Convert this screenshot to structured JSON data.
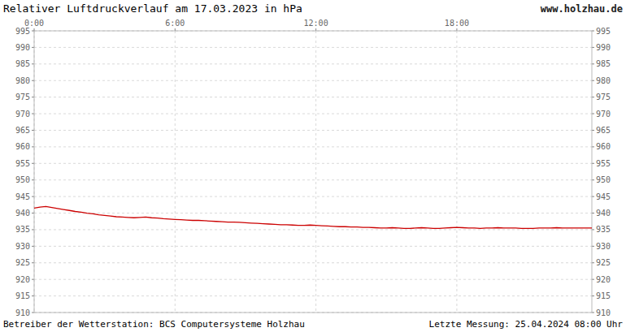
{
  "chart_data": {
    "type": "line",
    "title": "Relativer Luftdruckverlauf am 17.03.2023 in hPa",
    "annotations": [
      "www.holzhau.de",
      "Betreiber der Wetterstation: BCS Computersysteme Holzhau",
      "Letzte Messung: 25.04.2024 08:00 Uhr"
    ],
    "categories": [
      "0:00",
      null,
      null,
      null,
      null,
      null,
      null,
      null,
      null,
      null,
      null,
      null,
      null,
      null,
      null,
      null,
      null,
      null,
      null,
      null,
      null,
      null,
      null,
      null,
      "6:00",
      null,
      null,
      null,
      null,
      null,
      null,
      null,
      null,
      null,
      null,
      null,
      null,
      null,
      null,
      null,
      null,
      null,
      null,
      null,
      null,
      null,
      null,
      null,
      "12:00",
      null,
      null,
      null,
      null,
      null,
      null,
      null,
      null,
      null,
      null,
      null,
      null,
      null,
      null,
      null,
      null,
      null,
      null,
      null,
      null,
      null,
      null,
      null,
      "18:00",
      null,
      null,
      null,
      null,
      null,
      null,
      null,
      null,
      null,
      null,
      null,
      null,
      null,
      null,
      null,
      null,
      null,
      null,
      null,
      null,
      null,
      null,
      null
    ],
    "values": [
      941.5,
      941.8,
      942.0,
      941.7,
      941.4,
      941.1,
      940.8,
      940.5,
      940.3,
      940.0,
      939.8,
      939.5,
      939.3,
      939.1,
      938.9,
      938.8,
      938.7,
      938.6,
      938.7,
      938.8,
      938.6,
      938.5,
      938.3,
      938.2,
      938.1,
      938.0,
      937.9,
      937.8,
      937.8,
      937.7,
      937.6,
      937.5,
      937.4,
      937.3,
      937.3,
      937.2,
      937.1,
      937.0,
      936.9,
      936.8,
      936.7,
      936.6,
      936.5,
      936.5,
      936.4,
      936.3,
      936.3,
      936.4,
      936.3,
      936.2,
      936.1,
      936.0,
      935.9,
      935.9,
      935.8,
      935.8,
      935.7,
      935.7,
      935.6,
      935.5,
      935.5,
      935.6,
      935.5,
      935.4,
      935.4,
      935.5,
      935.6,
      935.5,
      935.4,
      935.4,
      935.5,
      935.6,
      935.7,
      935.6,
      935.5,
      935.5,
      935.4,
      935.5,
      935.5,
      935.6,
      935.5,
      935.5,
      935.5,
      935.4,
      935.4,
      935.4,
      935.5,
      935.5,
      935.5,
      935.6,
      935.5,
      935.5,
      935.5,
      935.5,
      935.5,
      935.5
    ],
    "color": "#cc0000",
    "ylim": [
      910,
      995
    ],
    "yticks": [
      910,
      915,
      920,
      925,
      930,
      935,
      940,
      945,
      950,
      955,
      960,
      965,
      970,
      975,
      980,
      985,
      990,
      995
    ],
    "grid": true
  }
}
